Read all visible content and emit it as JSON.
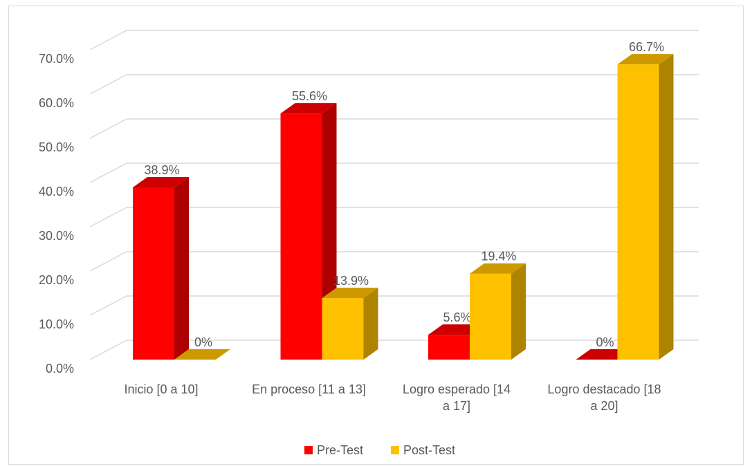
{
  "chart_data": {
    "type": "bar3d",
    "categories": [
      "Inicio [0 a 10]",
      "En proceso  [11 a 13]",
      "Logro esperado [14 a 17]",
      "Logro destacado [18 a 20]"
    ],
    "series": [
      {
        "name": "Pre-Test",
        "color": "#ff0000",
        "values": [
          38.9,
          55.6,
          5.6,
          0
        ],
        "value_labels": [
          "38.9%",
          "55.6%",
          "5.6%",
          "0%"
        ]
      },
      {
        "name": "Post-Test",
        "color": "#ffc000",
        "values": [
          0,
          13.9,
          19.4,
          66.7
        ],
        "value_labels": [
          "0%",
          "13.9%",
          "19.4%",
          "66.7%"
        ]
      }
    ],
    "ylim": [
      0,
      70
    ],
    "yticks": [
      {
        "value": 0,
        "label": "0.0%"
      },
      {
        "value": 10,
        "label": "10.0%"
      },
      {
        "value": 20,
        "label": "20.0%"
      },
      {
        "value": 30,
        "label": "30.0%"
      },
      {
        "value": 40,
        "label": "40.0%"
      },
      {
        "value": 50,
        "label": "50.0%"
      },
      {
        "value": 60,
        "label": "60.0%"
      },
      {
        "value": 70,
        "label": "70.0%"
      }
    ],
    "grid": true,
    "legend": "bottom"
  }
}
